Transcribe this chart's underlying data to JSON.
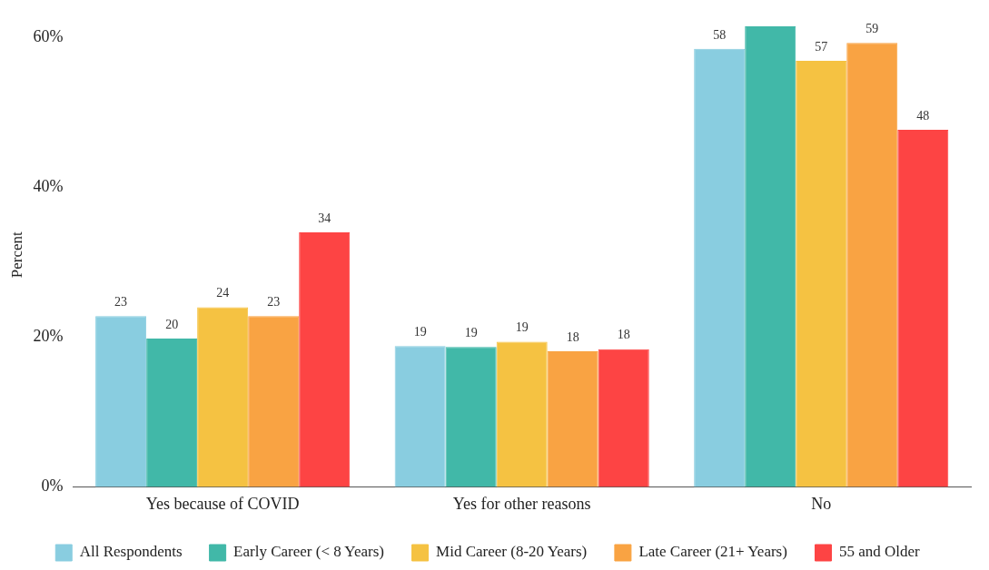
{
  "chart_data": {
    "type": "bar",
    "ylabel": "Percent",
    "categories": [
      "Yes because of COVID",
      "Yes for other reasons",
      "No"
    ],
    "series": [
      {
        "name": "All Respondents",
        "color": "#89cde0",
        "values": [
          22.8,
          18.8,
          58.5
        ],
        "value_labels": [
          "23",
          "19",
          "58"
        ]
      },
      {
        "name": "Early Career (< 8 Years)",
        "color": "#41b8a8",
        "values": [
          19.8,
          18.7,
          61.5
        ],
        "value_labels": [
          "20",
          "19",
          null
        ]
      },
      {
        "name": "Mid Career (8-20 Years)",
        "color": "#f5c242",
        "values": [
          24.0,
          19.4,
          56.9
        ],
        "value_labels": [
          "24",
          "19",
          "57"
        ]
      },
      {
        "name": "Late Career (21+ Years)",
        "color": "#f9a343",
        "values": [
          22.8,
          18.1,
          59.3
        ],
        "value_labels": [
          "23",
          "18",
          "59"
        ]
      },
      {
        "name": "55 and Older",
        "color": "#fd4444",
        "values": [
          34.0,
          18.4,
          47.7
        ],
        "value_labels": [
          "34",
          "18",
          "48"
        ]
      }
    ],
    "ylim": [
      0,
      62
    ],
    "yticks": [
      {
        "value": 0,
        "label": "0%"
      },
      {
        "value": 20,
        "label": "20%"
      },
      {
        "value": 40,
        "label": "40%"
      },
      {
        "value": 60,
        "label": "60%"
      }
    ],
    "grid": false,
    "legend": "bottom"
  }
}
